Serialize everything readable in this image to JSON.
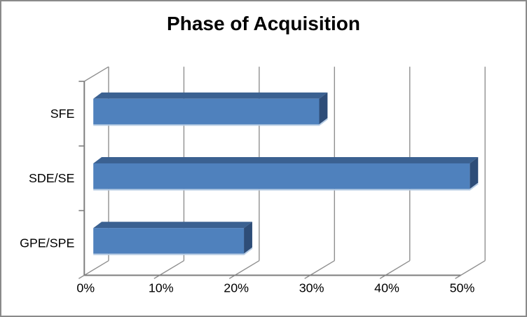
{
  "chart_data": {
    "type": "bar",
    "orientation": "horizontal",
    "effect_3d": true,
    "title": "Phase of Acquisition",
    "categories": [
      "SFE",
      "SDE/SE",
      "GPE/SPE"
    ],
    "values": [
      30,
      50,
      20
    ],
    "unit": "%",
    "x_tick_labels": [
      "0%",
      "10%",
      "20%",
      "30%",
      "40%",
      "50%"
    ],
    "xlim": [
      0,
      50
    ],
    "x_tick_step": 10,
    "grid": true,
    "legend": false,
    "colors": {
      "bar_front": "#4F81BD",
      "bar_top": "#3B6191",
      "bar_side": "#2E4D78",
      "bar_bottom_highlight": "#B7CCE4",
      "axis_line": "#7E7E7E",
      "gridline": "#8F8F8F",
      "text": "#000000",
      "frame_border": "#8A8A8A",
      "background": "#FFFFFF"
    }
  }
}
